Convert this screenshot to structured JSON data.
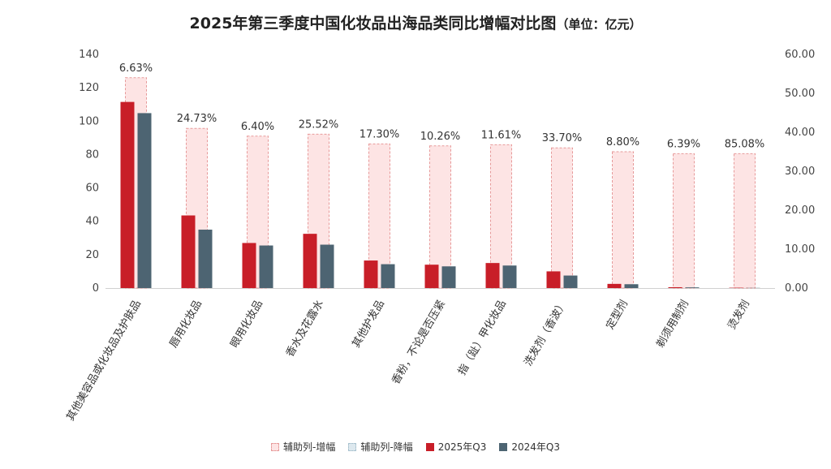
{
  "title": "2025年第三季度中国化妆品出海品类同比增幅对比图",
  "title_unit": "（单位：亿元）",
  "legend": {
    "up": "辅助列-增幅",
    "down": "辅助列-降幅",
    "y2025": "2025年Q3",
    "y2024": "2024年Q3"
  },
  "colors": {
    "y2025": "#c81e28",
    "y2024": "#4d6472",
    "aux_fill": "#fde4e4",
    "aux_stroke": "#e79a9a"
  },
  "chart_data": {
    "type": "bar",
    "title": "2025年第三季度中国化妆品出海品类同比增幅对比图",
    "unit": "亿元",
    "categories": [
      "其他美容品或化妆品及护肤品",
      "唇用化妆品",
      "眼用化妆品",
      "香水及花露水",
      "其他护发品",
      "香粉，不论是否压紧",
      "指（趾）甲化妆品",
      "洗发剂（香波）",
      "定型剂",
      "剃须用制剂",
      "烫发剂"
    ],
    "series": [
      {
        "name": "2025年Q3",
        "axis": "left",
        "values": [
          111.5,
          43.5,
          27,
          32.5,
          16.5,
          14,
          15,
          10,
          2.5,
          0.5,
          0.2
        ]
      },
      {
        "name": "2024年Q3",
        "axis": "left",
        "values": [
          104.8,
          35,
          25.5,
          26,
          14.3,
          13,
          13.5,
          7.5,
          2.3,
          0.4,
          0.1
        ]
      },
      {
        "name": "辅助列-增幅",
        "axis": "right",
        "values": [
          54,
          41,
          39,
          39.5,
          37,
          36.5,
          36.8,
          36,
          35,
          34.5,
          34.5
        ]
      }
    ],
    "growth_labels": [
      "6.63%",
      "24.73%",
      "6.40%",
      "25.52%",
      "17.30%",
      "10.26%",
      "11.61%",
      "33.70%",
      "8.80%",
      "6.39%",
      "85.08%"
    ],
    "y_left": {
      "range": [
        0,
        140
      ],
      "ticks": [
        "0",
        "20",
        "40",
        "60",
        "80",
        "100",
        "120",
        "140"
      ]
    },
    "y_right": {
      "range": [
        0,
        60
      ],
      "ticks": [
        "0.00",
        "10.00",
        "20.00",
        "30.00",
        "40.00",
        "50.00",
        "60.00"
      ]
    },
    "legend_position": "bottom",
    "grid": false
  }
}
